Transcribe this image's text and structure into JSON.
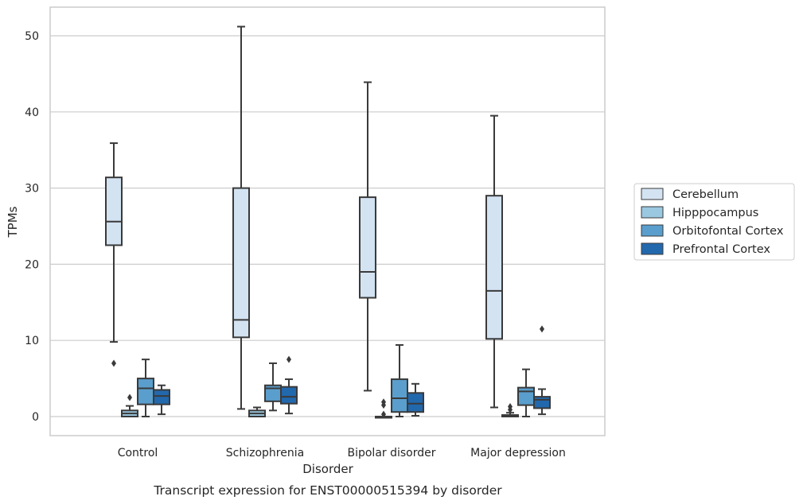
{
  "chart_data": {
    "type": "box",
    "title": "",
    "caption": "Transcript expression for ENST00000515394 by disorder",
    "xlabel": "Disorder",
    "ylabel": "TPMs",
    "ylim": [
      -2.5,
      53.8
    ],
    "yticks": [
      0,
      10,
      20,
      30,
      40,
      50
    ],
    "grid": "horizontal",
    "legend_position": "right",
    "categories": [
      "Control",
      "Schizophrenia",
      "Bipolar disorder",
      "Major depression"
    ],
    "series": [
      {
        "name": "Cerebellum",
        "color": "#d3e3f2",
        "boxes": [
          {
            "whislo": 9.8,
            "q1": 22.5,
            "med": 25.6,
            "q3": 31.4,
            "whishi": 35.9,
            "fliers": [
              7.0
            ]
          },
          {
            "whislo": 1.0,
            "q1": 10.4,
            "med": 12.7,
            "q3": 30.0,
            "whishi": 51.2,
            "fliers": []
          },
          {
            "whislo": 3.4,
            "q1": 15.6,
            "med": 19.0,
            "q3": 28.8,
            "whishi": 43.9,
            "fliers": []
          },
          {
            "whislo": 1.2,
            "q1": 10.2,
            "med": 16.5,
            "q3": 29.0,
            "whishi": 39.5,
            "fliers": []
          }
        ]
      },
      {
        "name": "Hipppocampus",
        "color": "#9ac8e0",
        "boxes": [
          {
            "whislo": 0.0,
            "q1": 0.0,
            "med": 0.4,
            "q3": 0.8,
            "whishi": 1.4,
            "fliers": [
              2.5
            ]
          },
          {
            "whislo": 0.0,
            "q1": 0.0,
            "med": 0.4,
            "q3": 0.8,
            "whishi": 1.2,
            "fliers": []
          },
          {
            "whislo": 0.0,
            "q1": 0.0,
            "med": 0.0,
            "q3": 0.0,
            "whishi": 0.0,
            "fliers": [
              0.3,
              1.5,
              1.9
            ]
          },
          {
            "whislo": 0.0,
            "q1": 0.0,
            "med": 0.1,
            "q3": 0.2,
            "whishi": 0.5,
            "fliers": [
              0.9,
              1.3
            ]
          }
        ]
      },
      {
        "name": "Orbitofontal Cortex",
        "color": "#5a9ecd",
        "boxes": [
          {
            "whislo": 0.0,
            "q1": 1.6,
            "med": 3.7,
            "q3": 5.0,
            "whishi": 7.5,
            "fliers": []
          },
          {
            "whislo": 0.8,
            "q1": 2.0,
            "med": 3.7,
            "q3": 4.1,
            "whishi": 7.0,
            "fliers": []
          },
          {
            "whislo": 0.0,
            "q1": 0.6,
            "med": 2.4,
            "q3": 4.9,
            "whishi": 9.4,
            "fliers": []
          },
          {
            "whislo": 0.0,
            "q1": 1.5,
            "med": 3.3,
            "q3": 3.8,
            "whishi": 6.2,
            "fliers": []
          }
        ]
      },
      {
        "name": "Prefrontal Cortex",
        "color": "#2268ad",
        "boxes": [
          {
            "whislo": 0.3,
            "q1": 1.6,
            "med": 2.7,
            "q3": 3.5,
            "whishi": 4.1,
            "fliers": []
          },
          {
            "whislo": 0.4,
            "q1": 1.7,
            "med": 2.6,
            "q3": 3.9,
            "whishi": 4.9,
            "fliers": [
              7.5
            ]
          },
          {
            "whislo": 0.1,
            "q1": 0.6,
            "med": 1.7,
            "q3": 3.1,
            "whishi": 4.3,
            "fliers": []
          },
          {
            "whislo": 0.3,
            "q1": 1.1,
            "med": 2.2,
            "q3": 2.6,
            "whishi": 3.6,
            "fliers": [
              11.5
            ]
          }
        ]
      }
    ]
  }
}
